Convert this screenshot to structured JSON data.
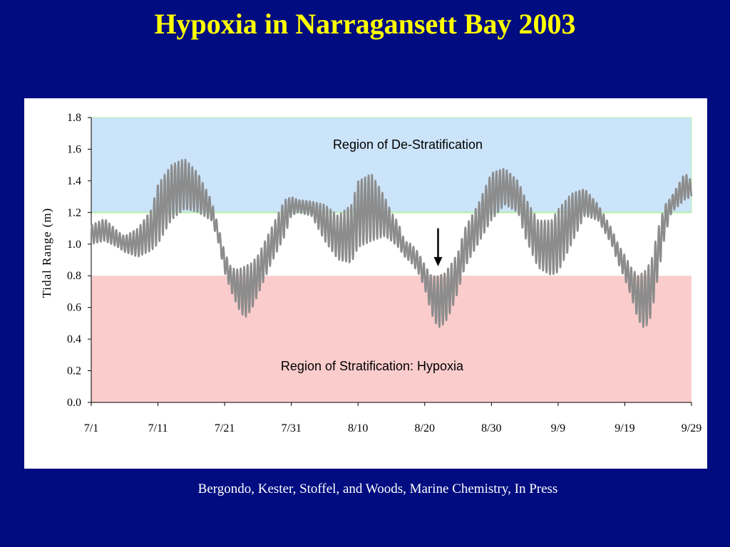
{
  "slide": {
    "title": "Hypoxia in Narragansett Bay 2003",
    "citation": "Bergondo, Kester, Stoffel, and Woods, Marine Chemistry, In Press"
  },
  "colors": {
    "background": "#000c80",
    "title": "#ffff00",
    "destrat_band": "#cce4fa",
    "strat_band": "#fbcccc",
    "series_line": "#8c8c8c",
    "threshold_line": "#b6f0a8"
  },
  "chart_data": {
    "type": "line",
    "title": "",
    "xlabel": "",
    "ylabel": "Tidal Range (m)",
    "ylim": [
      0.0,
      1.8
    ],
    "yticks": [
      "0.0",
      "0.2",
      "0.4",
      "0.6",
      "0.8",
      "1.0",
      "1.2",
      "1.4",
      "1.6",
      "1.8"
    ],
    "ytick_values": [
      0.0,
      0.2,
      0.4,
      0.6,
      0.8,
      1.0,
      1.2,
      1.4,
      1.6,
      1.8
    ],
    "xlim_days": [
      0,
      90
    ],
    "xticks": [
      "7/1",
      "7/11",
      "7/21",
      "7/31",
      "8/10",
      "8/20",
      "8/30",
      "9/9",
      "9/19",
      "9/29"
    ],
    "xtick_days": [
      0,
      10,
      20,
      30,
      40,
      50,
      60,
      70,
      80,
      90
    ],
    "regions": [
      {
        "label": "Region of De-Stratification",
        "y_from": 1.2,
        "y_to": 1.8
      },
      {
        "label": "Region of Stratification: Hypoxia",
        "y_from": 0.0,
        "y_to": 0.8
      }
    ],
    "annotations": [
      {
        "type": "arrow-down",
        "x_day": 52,
        "y_from": 1.1,
        "y_to": 0.86
      }
    ],
    "series": [
      {
        "envelope_days": [
          0,
          2,
          4,
          5,
          7,
          9,
          10,
          12,
          14,
          16,
          18,
          19,
          20,
          21,
          22,
          23,
          24,
          25,
          27,
          29,
          30,
          31,
          33,
          35,
          37,
          39,
          40,
          42,
          44,
          45,
          46,
          47,
          48,
          49,
          50,
          51,
          52,
          53,
          54,
          55,
          56,
          58,
          60,
          62,
          64,
          65,
          67,
          69,
          70,
          72,
          74,
          76,
          78,
          79,
          80,
          81,
          82,
          83,
          84,
          85,
          86,
          87,
          89,
          90
        ],
        "envelope_max": [
          1.12,
          1.16,
          1.08,
          1.05,
          1.1,
          1.22,
          1.38,
          1.5,
          1.54,
          1.45,
          1.28,
          1.12,
          0.95,
          0.85,
          0.84,
          0.86,
          0.88,
          0.93,
          1.1,
          1.28,
          1.3,
          1.28,
          1.27,
          1.25,
          1.18,
          1.25,
          1.4,
          1.45,
          1.3,
          1.2,
          1.14,
          1.02,
          1.0,
          0.95,
          0.87,
          0.8,
          0.8,
          0.82,
          0.88,
          0.95,
          1.1,
          1.25,
          1.45,
          1.48,
          1.4,
          1.3,
          1.15,
          1.15,
          1.22,
          1.32,
          1.35,
          1.25,
          1.1,
          1.0,
          0.93,
          0.85,
          0.8,
          0.83,
          0.9,
          1.1,
          1.25,
          1.3,
          1.45,
          1.4
        ],
        "envelope_min": [
          1.0,
          1.02,
          0.98,
          0.95,
          0.92,
          0.96,
          1.0,
          1.15,
          1.22,
          1.2,
          1.15,
          1.02,
          0.82,
          0.7,
          0.6,
          0.53,
          0.58,
          0.68,
          0.88,
          1.05,
          1.18,
          1.2,
          1.18,
          1.02,
          0.9,
          0.88,
          0.98,
          1.02,
          1.05,
          1.02,
          0.98,
          0.92,
          0.88,
          0.82,
          0.72,
          0.56,
          0.47,
          0.5,
          0.58,
          0.7,
          0.85,
          1.0,
          1.15,
          1.25,
          1.2,
          1.05,
          0.85,
          0.8,
          0.82,
          1.0,
          1.18,
          1.15,
          1.0,
          0.88,
          0.78,
          0.66,
          0.52,
          0.46,
          0.55,
          0.8,
          1.05,
          1.2,
          1.28,
          1.3
        ],
        "semidiurnal_cycles_per_day": 1.93
      }
    ]
  }
}
